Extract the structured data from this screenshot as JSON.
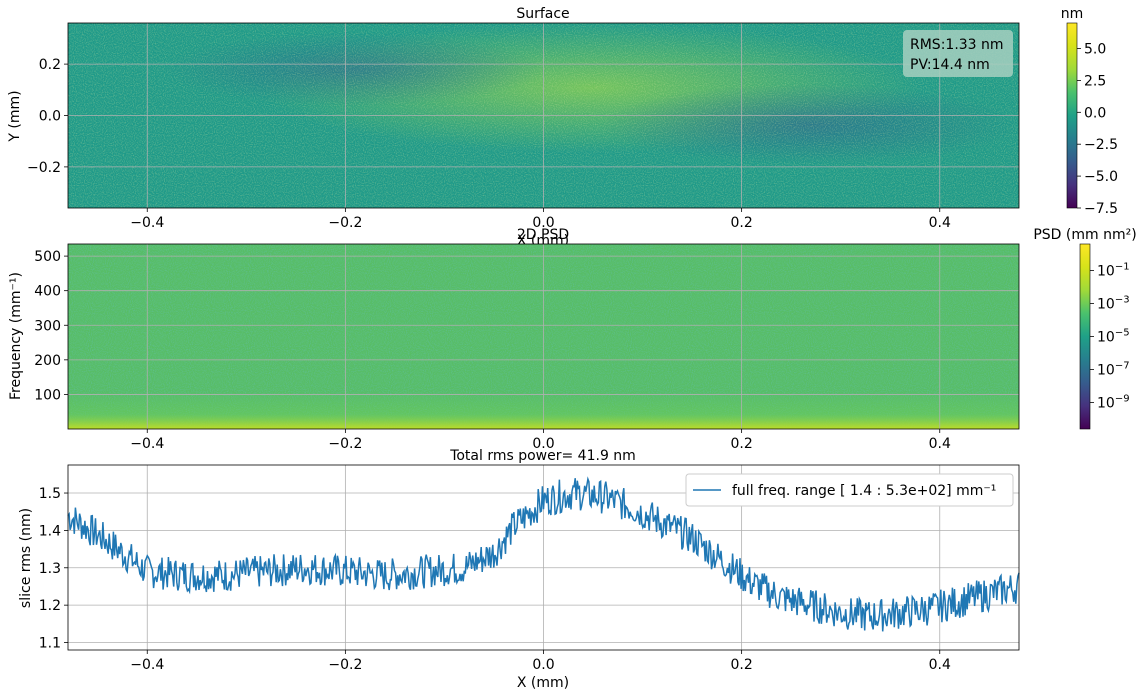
{
  "chart_data": [
    {
      "type": "heatmap",
      "title": "Surface",
      "xlabel": "X (mm)",
      "ylabel": "Y (mm)",
      "xlim": [
        -0.48,
        0.48
      ],
      "ylim": [
        -0.36,
        0.36
      ],
      "xticks": [
        -0.4,
        -0.2,
        0.0,
        0.2,
        0.4
      ],
      "xtick_labels": [
        "−0.4",
        "−0.2",
        "0.0",
        "0.2",
        "0.4"
      ],
      "yticks": [
        0.2,
        0.0,
        -0.2
      ],
      "ytick_labels": [
        "0.2",
        "0.0",
        "−0.2"
      ],
      "grid": true,
      "colormap": "viridis",
      "colorbar": {
        "label": "nm",
        "range": [
          -7.5,
          7.0
        ],
        "ticks": [
          5.0,
          2.5,
          0.0,
          -2.5,
          -5.0,
          -7.5
        ],
        "tick_labels": [
          "5.0",
          "2.5",
          "0.0",
          "−2.5",
          "−5.0",
          "−7.5"
        ]
      },
      "annotation": {
        "rms_text": "RMS:1.33 nm",
        "pv_text": "PV:14.4 nm",
        "placement": "top-right"
      }
    },
    {
      "type": "heatmap",
      "title": "2D PSD",
      "xlabel": "",
      "ylabel": "Frequency (mm⁻¹)",
      "xlim": [
        -0.48,
        0.48
      ],
      "ylim": [
        0,
        535
      ],
      "xticks": [
        -0.4,
        -0.2,
        0.0,
        0.2,
        0.4
      ],
      "xtick_labels": [
        "−0.4",
        "−0.2",
        "0.0",
        "0.2",
        "0.4"
      ],
      "yticks": [
        500,
        400,
        300,
        200,
        100
      ],
      "ytick_labels": [
        "500",
        "400",
        "300",
        "200",
        "100"
      ],
      "grid": true,
      "colormap": "viridis",
      "colorbar": {
        "label": "PSD (mm nm²)",
        "scale": "log",
        "range_exp": [
          -10.6,
          0.6
        ],
        "tick_exponents": [
          -1,
          -3,
          -5,
          -7,
          -9
        ]
      }
    },
    {
      "type": "line",
      "title": "Total rms power=  41.9 nm",
      "xlabel": "X (mm)",
      "ylabel": "slice rms (nm)",
      "xlim": [
        -0.48,
        0.48
      ],
      "ylim": [
        1.08,
        1.575
      ],
      "xticks": [
        -0.4,
        -0.2,
        0.0,
        0.2,
        0.4
      ],
      "xtick_labels": [
        "−0.4",
        "−0.2",
        "0.0",
        "0.2",
        "0.4"
      ],
      "yticks": [
        1.5,
        1.4,
        1.3,
        1.2,
        1.1
      ],
      "ytick_labels": [
        "1.5",
        "1.4",
        "1.3",
        "1.2",
        "1.1"
      ],
      "grid": true,
      "legend_placement": "top-right",
      "series": [
        {
          "name": "full freq. range [ 1.4 : 5.3e+02] mm⁻¹",
          "color": "#1f77b4",
          "x": [
            -0.48,
            -0.44,
            -0.4,
            -0.36,
            -0.32,
            -0.28,
            -0.24,
            -0.2,
            -0.16,
            -0.12,
            -0.08,
            -0.05,
            -0.03,
            0.0,
            0.03,
            0.06,
            0.09,
            0.12,
            0.15,
            0.18,
            0.21,
            0.24,
            0.27,
            0.3,
            0.33,
            0.36,
            0.39,
            0.42,
            0.45,
            0.48
          ],
          "values": [
            1.44,
            1.37,
            1.29,
            1.28,
            1.28,
            1.29,
            1.3,
            1.29,
            1.28,
            1.29,
            1.3,
            1.34,
            1.41,
            1.48,
            1.5,
            1.49,
            1.46,
            1.42,
            1.38,
            1.32,
            1.26,
            1.22,
            1.2,
            1.18,
            1.17,
            1.18,
            1.19,
            1.21,
            1.23,
            1.25
          ]
        }
      ]
    }
  ]
}
